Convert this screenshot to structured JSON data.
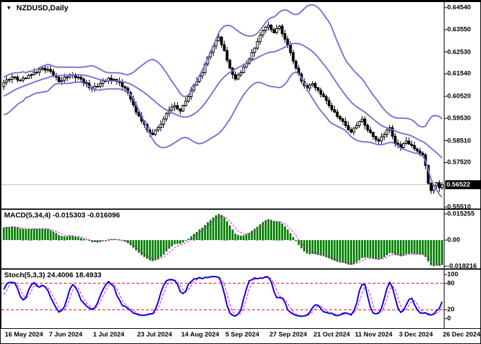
{
  "window": {
    "title": "NZDUSD,Daily"
  },
  "panes": {
    "macd": {
      "label": "MACD(5,34,4) -0.015303 -0.016096",
      "ticks": {
        "max": "0.015255",
        "zero": "0.00",
        "min": "-0.018216"
      }
    },
    "stoch": {
      "label": "Stoch(5,3,3) 24.4006 18.4933",
      "ticks": [
        "100",
        "80",
        "20",
        "0"
      ]
    }
  },
  "price_axis": {
    "ticks": [
      "0.64540",
      "0.63550",
      "0.62530",
      "0.61540",
      "0.60520",
      "0.59530",
      "0.58510",
      "0.57520",
      "0.55510"
    ],
    "current": "0.56522"
  },
  "time_axis": {
    "labels": [
      "16 May 2024",
      "7 Jun 2024",
      "1 Jul 2024",
      "23 Jul 2024",
      "14 Aug 2024",
      "5 Sep 2024",
      "27 Sep 2024",
      "21 Oct 2024",
      "11 Nov 2024",
      "3 Dec 2024",
      "26 Dec 2024"
    ],
    "indices": [
      0,
      16,
      32,
      48,
      64,
      80,
      96,
      112,
      127,
      143,
      159
    ]
  },
  "colors": {
    "background": "#ffffff",
    "border": "#000000",
    "separator": "#1c1c1c",
    "bollinger_band": "#7b71d9",
    "candle_up_fill": "#ffffff",
    "candle_down_fill": "#000000",
    "candle_outline": "#000000",
    "macd_histogram": "#0a870a",
    "macd_signal": "#ff00ff",
    "stoch_main": "#0000e1",
    "stoch_signal": "#ff00ff",
    "stoch_levels": "#d40000",
    "price_line": "#bdbdbd",
    "price_tag_bg": "#000000",
    "price_tag_text": "#ffffff"
  },
  "chart_data": {
    "type": "candlestick",
    "symbol": "NZDUSD",
    "timeframe": "Daily",
    "title": "NZDUSD,Daily",
    "price_range": [
      0.5551,
      0.6454
    ],
    "current_price": 0.56522,
    "x_labels": [
      "16 May 2024",
      "7 Jun 2024",
      "1 Jul 2024",
      "23 Jul 2024",
      "14 Aug 2024",
      "5 Sep 2024",
      "27 Sep 2024",
      "21 Oct 2024",
      "11 Nov 2024",
      "3 Dec 2024",
      "26 Dec 2024"
    ],
    "closes": [
      0.6115,
      0.6127,
      0.6128,
      0.614,
      0.6139,
      0.6126,
      0.6125,
      0.6135,
      0.6134,
      0.6148,
      0.615,
      0.6161,
      0.6161,
      0.6176,
      0.618,
      0.6171,
      0.6174,
      0.6165,
      0.6146,
      0.6139,
      0.612,
      0.6124,
      0.6139,
      0.6139,
      0.615,
      0.6149,
      0.6136,
      0.6139,
      0.613,
      0.6115,
      0.6111,
      0.6092,
      0.6085,
      0.6097,
      0.6098,
      0.611,
      0.6122,
      0.6123,
      0.6135,
      0.6126,
      0.6129,
      0.612,
      0.6114,
      0.6096,
      0.609,
      0.6069,
      0.604,
      0.6014,
      0.598,
      0.5964,
      0.594,
      0.5924,
      0.59,
      0.5886,
      0.588,
      0.5899,
      0.591,
      0.5926,
      0.595,
      0.5974,
      0.599,
      0.6004,
      0.601,
      0.5994,
      0.5985,
      0.6011,
      0.603,
      0.6051,
      0.608,
      0.6104,
      0.612,
      0.6144,
      0.616,
      0.6199,
      0.623,
      0.6251,
      0.628,
      0.6304,
      0.632,
      0.6286,
      0.626,
      0.6216,
      0.618,
      0.6151,
      0.613,
      0.6149,
      0.616,
      0.6184,
      0.62,
      0.6221,
      0.625,
      0.6271,
      0.63,
      0.6329,
      0.635,
      0.6366,
      0.6375,
      0.6354,
      0.634,
      0.6359,
      0.637,
      0.6336,
      0.631,
      0.6284,
      0.625,
      0.6211,
      0.618,
      0.6154,
      0.612,
      0.6101,
      0.609,
      0.6104,
      0.611,
      0.6091,
      0.608,
      0.6061,
      0.605,
      0.6034,
      0.601,
      0.5991,
      0.598,
      0.5961,
      0.595,
      0.5939,
      0.592,
      0.5901,
      0.589,
      0.5909,
      0.592,
      0.5939,
      0.595,
      0.5921,
      0.59,
      0.5889,
      0.587,
      0.5856,
      0.585,
      0.5869,
      0.588,
      0.5899,
      0.591,
      0.5871,
      0.584,
      0.5834,
      0.582,
      0.5839,
      0.585,
      0.5836,
      0.583,
      0.5814,
      0.5805,
      0.5795,
      0.5788,
      0.574,
      0.5658,
      0.5625,
      0.5648,
      0.5662,
      0.5638,
      0.5652
    ],
    "indicators": {
      "bollinger": {
        "period": 20,
        "deviation": 2
      },
      "macd": {
        "fast_ema": 5,
        "slow_ema": 34,
        "signal_period": 4,
        "current_macd": -0.015303,
        "current_signal": -0.016096,
        "axis_range": [
          -0.018216,
          0.015255
        ]
      },
      "stochastic": {
        "k_period": 5,
        "d_period": 3,
        "slowing": 3,
        "current_k": 24.4006,
        "current_d": 18.4933,
        "levels": [
          80,
          20
        ],
        "axis_range": [
          0,
          100
        ]
      }
    },
    "seed": 7
  }
}
